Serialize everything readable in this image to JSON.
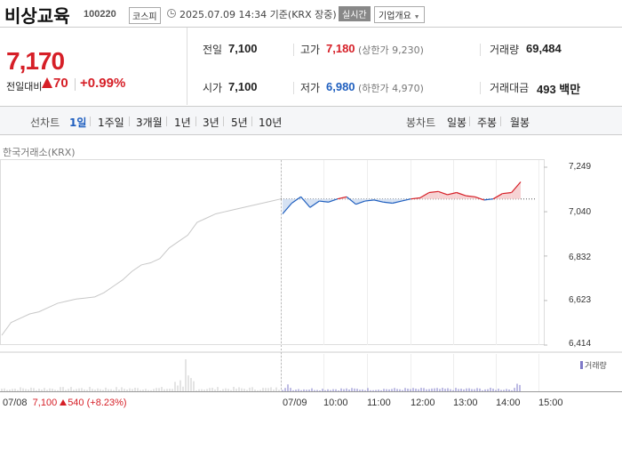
{
  "header": {
    "stock_name": "비상교육",
    "stock_code": "100220",
    "market": "코스피",
    "timestamp": "2025.07.09 14:34 기준(KRX 장중)",
    "realtime_label": "실시간",
    "company_info_button": "기업개요"
  },
  "price": {
    "current": "7,170",
    "change_label": "전일대비",
    "change": "70",
    "change_pct": "+0.99%",
    "direction": "up"
  },
  "stats": {
    "prev_close_label": "전일",
    "prev_close": "7,100",
    "high_label": "고가",
    "high": "7,180",
    "upper_limit": "(상한가 9,230)",
    "volume_label": "거래량",
    "volume": "69,484",
    "open_label": "시가",
    "open": "7,100",
    "low_label": "저가",
    "low": "6,980",
    "lower_limit": "(하한가 4,970)",
    "value_label": "거래대금",
    "value": "493 백만"
  },
  "tabs": {
    "line_label": "선차트",
    "line_periods": [
      "1일",
      "1주일",
      "3개월",
      "1년",
      "3년",
      "5년",
      "10년"
    ],
    "active_period": "1일",
    "candle_label": "봉차트",
    "candle_periods": [
      "일봉",
      "주봉",
      "월봉"
    ]
  },
  "chart": {
    "exchange_label": "한국거래소(KRX)",
    "volume_legend": "거래량",
    "prev_day": {
      "date": "07/08",
      "close": "7,100",
      "change": "540",
      "change_pct": "(+8.23%)"
    },
    "x_labels": [
      "07/09",
      "10:00",
      "11:00",
      "12:00",
      "13:00",
      "14:00",
      "15:00"
    ]
  },
  "chart_data": {
    "type": "line",
    "title": "한국거래소(KRX)",
    "y_ticks": [
      "7,249",
      "7,040",
      "6,832",
      "6,623",
      "6,414"
    ],
    "ylim": [
      6414,
      7249
    ],
    "reference_price": 7100,
    "series": [
      {
        "name": "07/08",
        "color": "#c8c8c8",
        "values": [
          6460,
          6520,
          6540,
          6560,
          6570,
          6590,
          6610,
          6620,
          6630,
          6635,
          6640,
          6660,
          6690,
          6720,
          6760,
          6790,
          6800,
          6820,
          6870,
          6900,
          6930,
          6990,
          7010,
          7030,
          7040,
          7050,
          7060,
          7070,
          7080,
          7090,
          7100
        ]
      },
      {
        "name": "07/09",
        "color": "#1f5fbf",
        "up_color": "#d61f27",
        "values": [
          7030,
          7080,
          7110,
          7060,
          7090,
          7085,
          7100,
          7110,
          7075,
          7090,
          7095,
          7085,
          7080,
          7090,
          7100,
          7105,
          7130,
          7135,
          7120,
          7130,
          7115,
          7110,
          7095,
          7100,
          7125,
          7130,
          7180
        ]
      }
    ],
    "volume_color": "#7e79c8"
  }
}
